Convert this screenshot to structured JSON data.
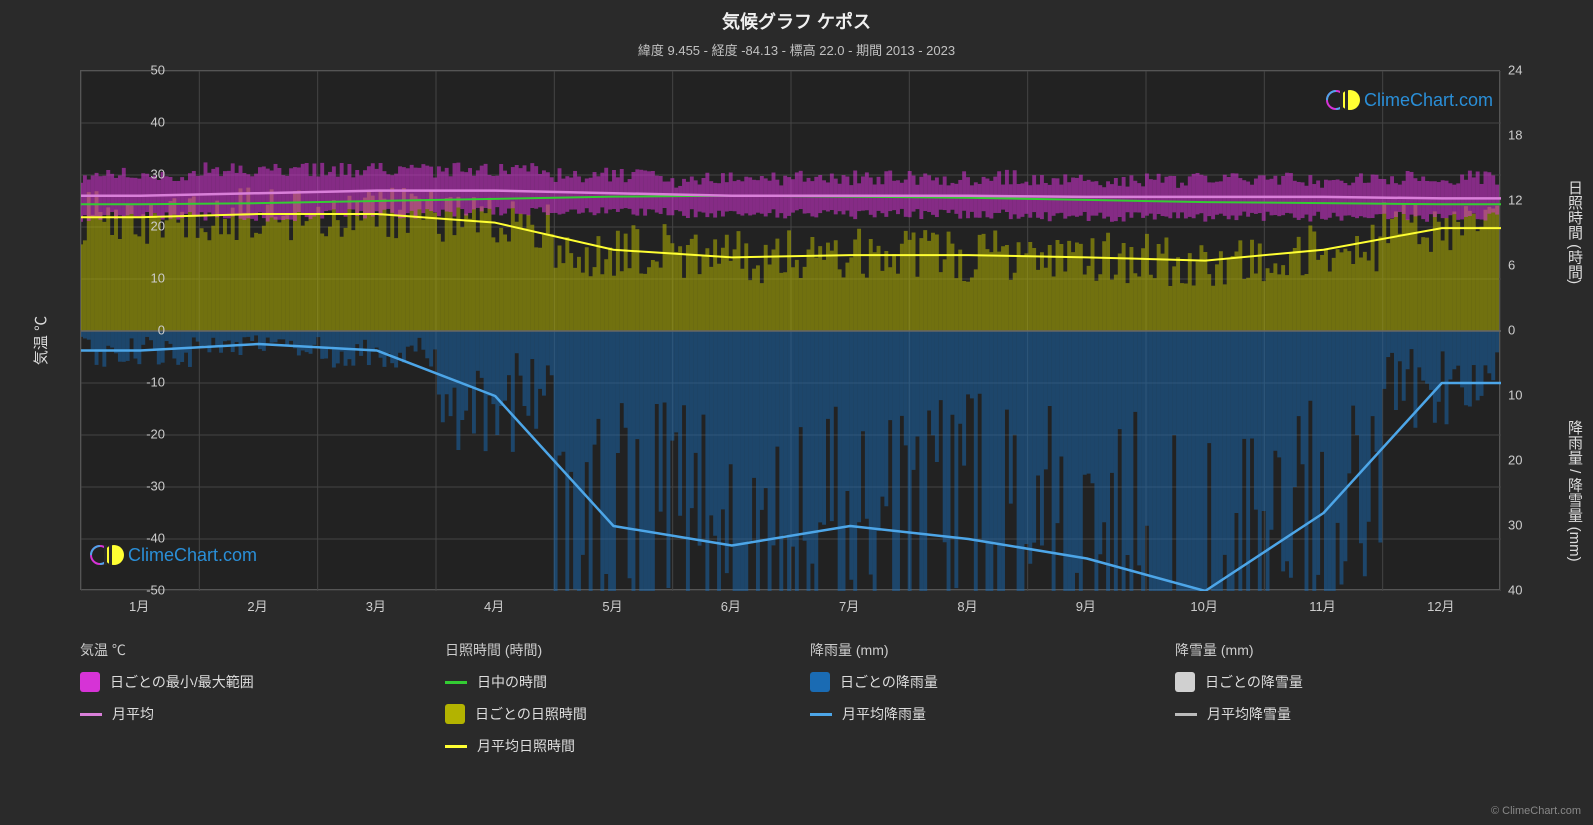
{
  "title": "気候グラフ ケポス",
  "subtitle": "緯度 9.455 - 経度 -84.13 - 標高 22.0 - 期間 2013 - 2023",
  "watermark": "ClimeChart.com",
  "copyright": "© ClimeChart.com",
  "chart": {
    "type": "climate-composite",
    "background_color": "#222222",
    "page_background": "#2a2a2a",
    "grid_color": "#444444",
    "border_color": "#555555",
    "text_color": "#cccccc",
    "y_left_label": "気温 ℃",
    "y_left_min": -50,
    "y_left_max": 50,
    "y_left_ticks": [
      -50,
      -40,
      -30,
      -20,
      -10,
      0,
      10,
      20,
      30,
      40,
      50
    ],
    "y_right1_label": "日照時間 (時間)",
    "y_right1_min": 0,
    "y_right1_max": 24,
    "y_right1_ticks": [
      0,
      6,
      12,
      18,
      24
    ],
    "y_right2_label": "降雨量 / 降雪量 (mm)",
    "y_right2_min": 0,
    "y_right2_max": 40,
    "y_right2_ticks": [
      0,
      10,
      20,
      30,
      40
    ],
    "x_labels": [
      "1月",
      "2月",
      "3月",
      "4月",
      "5月",
      "6月",
      "7月",
      "8月",
      "9月",
      "10月",
      "11月",
      "12月"
    ],
    "series": {
      "temp_range_color": "#d633d6",
      "temp_avg_color": "#d97fd9",
      "daylight_color": "#33cc33",
      "sunshine_daily_color": "#b3b300",
      "sunshine_avg_color": "#ffff33",
      "rain_daily_color": "#1a6bb3",
      "rain_avg_color": "#4da6e8",
      "snow_daily_color": "#d0d0d0",
      "snow_avg_color": "#bbbbbb",
      "temp_avg_values": [
        26.0,
        26.5,
        27.0,
        27.0,
        26.5,
        26.0,
        26.0,
        26.0,
        25.8,
        25.8,
        25.8,
        25.5
      ],
      "temp_min_values": [
        22,
        22,
        22.5,
        23,
        23,
        22.5,
        22.5,
        22.5,
        22,
        22,
        22,
        22
      ],
      "temp_max_values": [
        30,
        31,
        31,
        31,
        30,
        29,
        29.5,
        29.5,
        29,
        29,
        29,
        29.5
      ],
      "daylight_values": [
        11.7,
        11.8,
        12.0,
        12.2,
        12.4,
        12.5,
        12.4,
        12.3,
        12.1,
        11.9,
        11.8,
        11.7
      ],
      "sunshine_avg_values": [
        10.5,
        10.8,
        10.8,
        10.0,
        7.5,
        6.8,
        7.0,
        7.0,
        6.8,
        6.5,
        7.5,
        9.5
      ],
      "rain_avg_values": [
        3.0,
        2.0,
        3.0,
        10.0,
        30.0,
        33.0,
        30.0,
        32.0,
        35.0,
        40.0,
        28.0,
        8.0
      ]
    }
  },
  "legend": {
    "groups": [
      {
        "header": "気温 ℃",
        "items": [
          {
            "type": "swatch",
            "color": "#d633d6",
            "label": "日ごとの最小/最大範囲"
          },
          {
            "type": "line",
            "color": "#d97fd9",
            "label": "月平均"
          }
        ]
      },
      {
        "header": "日照時間 (時間)",
        "items": [
          {
            "type": "line",
            "color": "#33cc33",
            "label": "日中の時間"
          },
          {
            "type": "swatch",
            "color": "#b3b300",
            "label": "日ごとの日照時間"
          },
          {
            "type": "line",
            "color": "#ffff33",
            "label": "月平均日照時間"
          }
        ]
      },
      {
        "header": "降雨量 (mm)",
        "items": [
          {
            "type": "swatch",
            "color": "#1a6bb3",
            "label": "日ごとの降雨量"
          },
          {
            "type": "line",
            "color": "#4da6e8",
            "label": "月平均降雨量"
          }
        ]
      },
      {
        "header": "降雪量 (mm)",
        "items": [
          {
            "type": "swatch",
            "color": "#d0d0d0",
            "label": "日ごとの降雪量"
          },
          {
            "type": "line",
            "color": "#bbbbbb",
            "label": "月平均降雪量"
          }
        ]
      }
    ]
  }
}
